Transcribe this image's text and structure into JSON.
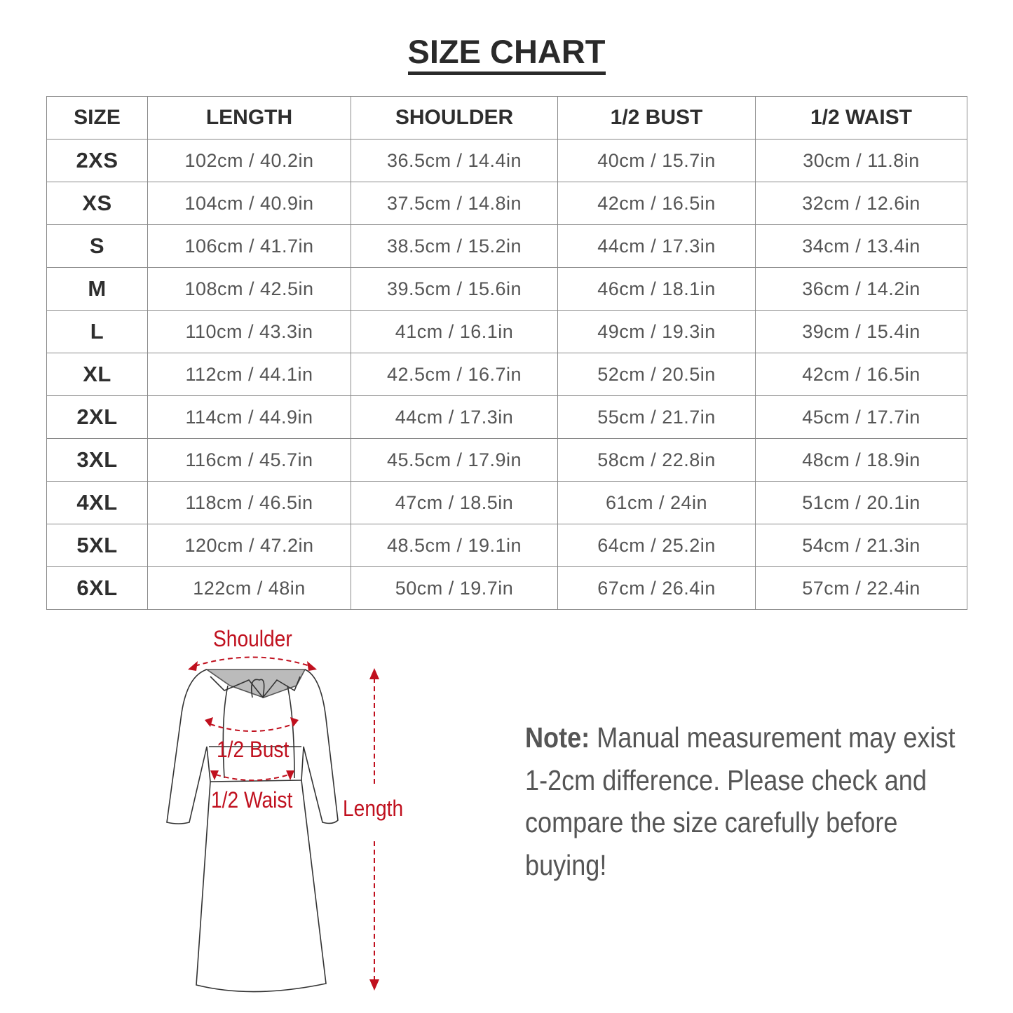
{
  "title": "SIZE CHART",
  "table": {
    "headers": [
      "SIZE",
      "LENGTH",
      "SHOULDER",
      "1/2 BUST",
      "1/2 WAIST"
    ],
    "rows": [
      [
        "2XS",
        "102cm / 40.2in",
        "36.5cm / 14.4in",
        "40cm / 15.7in",
        "30cm / 11.8in"
      ],
      [
        "XS",
        "104cm / 40.9in",
        "37.5cm / 14.8in",
        "42cm / 16.5in",
        "32cm / 12.6in"
      ],
      [
        "S",
        "106cm / 41.7in",
        "38.5cm / 15.2in",
        "44cm / 17.3in",
        "34cm / 13.4in"
      ],
      [
        "M",
        "108cm / 42.5in",
        "39.5cm / 15.6in",
        "46cm / 18.1in",
        "36cm / 14.2in"
      ],
      [
        "L",
        "110cm / 43.3in",
        "41cm / 16.1in",
        "49cm / 19.3in",
        "39cm / 15.4in"
      ],
      [
        "XL",
        "112cm / 44.1in",
        "42.5cm / 16.7in",
        "52cm / 20.5in",
        "42cm / 16.5in"
      ],
      [
        "2XL",
        "114cm / 44.9in",
        "44cm / 17.3in",
        "55cm / 21.7in",
        "45cm / 17.7in"
      ],
      [
        "3XL",
        "116cm / 45.7in",
        "45.5cm / 17.9in",
        "58cm / 22.8in",
        "48cm / 18.9in"
      ],
      [
        "4XL",
        "118cm / 46.5in",
        "47cm / 18.5in",
        "61cm / 24in",
        "51cm / 20.1in"
      ],
      [
        "5XL",
        "120cm / 47.2in",
        "48.5cm / 19.1in",
        "64cm / 25.2in",
        "54cm / 21.3in"
      ],
      [
        "6XL",
        "122cm / 48in",
        "50cm / 19.7in",
        "67cm / 26.4in",
        "57cm / 22.4in"
      ]
    ]
  },
  "diagram": {
    "labels": {
      "shoulder": "Shoulder",
      "bust": "1/2 Bust",
      "waist": "1/2 Waist",
      "length": "Length"
    },
    "accent_color": "#c0101e"
  },
  "note": {
    "label": "Note:",
    "text": " Manual measurement may exist 1-2cm difference. Please check and compare the size carefully before buying!"
  }
}
